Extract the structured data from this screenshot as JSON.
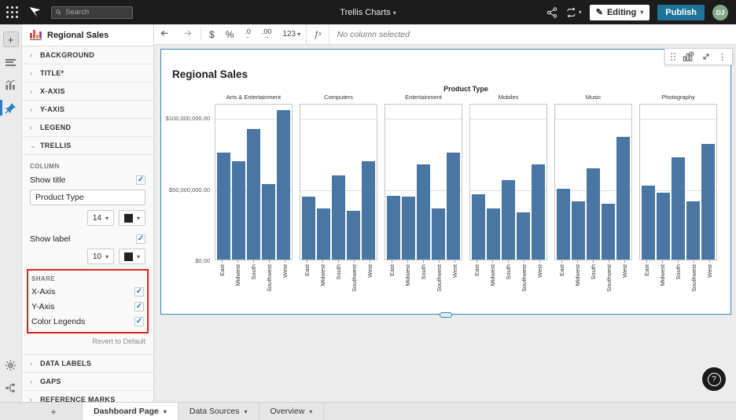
{
  "topbar": {
    "search_placeholder": "Search",
    "doc_title": "Trellis Charts",
    "editing_label": "Editing",
    "publish_label": "Publish",
    "avatar_initials": "DJ"
  },
  "toolbar": {
    "number_format_label": "123",
    "formula_placeholder": "No column selected"
  },
  "sidebar": {
    "element_title": "Regional Sales",
    "sections_before": [
      "BACKGROUND",
      "TITLE*",
      "X-AXIS",
      "Y-AXIS",
      "LEGEND"
    ],
    "trellis": {
      "label": "TRELLIS",
      "column_label": "COLUMN",
      "show_title_label": "Show title",
      "title_value": "Product Type",
      "title_size": "14",
      "show_label_label": "Show label",
      "label_size": "10",
      "share_label": "SHARE",
      "share_items": [
        {
          "label": "X-Axis",
          "checked": true
        },
        {
          "label": "Y-Axis",
          "checked": true
        },
        {
          "label": "Color Legends",
          "checked": true
        }
      ],
      "revert_label": "Revert to Default"
    },
    "sections_after": [
      "DATA LABELS",
      "GAPS",
      "REFERENCE MARKS"
    ]
  },
  "bottombar": {
    "tabs": [
      {
        "label": "Dashboard Page",
        "active": true
      },
      {
        "label": "Data Sources",
        "active": false
      },
      {
        "label": "Overview",
        "active": false
      }
    ]
  },
  "colors": {
    "bar": "#4a76a4",
    "accent_check": "#1e73bd",
    "publish_button": "#1f7398",
    "avatar": "#84a98b",
    "selection_border": "#3b86ad",
    "highlight_box": "#e02222"
  },
  "chart_data": {
    "type": "bar",
    "title": "Regional Sales",
    "trellis_header": "Product Type",
    "categories": [
      "East",
      "Midwest",
      "South",
      "Southwest",
      "West"
    ],
    "panels": [
      {
        "name": "Arts & Entertainment",
        "values": [
          75000000,
          69000000,
          92000000,
          53000000,
          105000000
        ]
      },
      {
        "name": "Computers",
        "values": [
          44000000,
          36000000,
          59000000,
          34000000,
          69000000
        ]
      },
      {
        "name": "Entertainment",
        "values": [
          45000000,
          44000000,
          67000000,
          36000000,
          75000000
        ]
      },
      {
        "name": "Mobiles",
        "values": [
          46000000,
          36000000,
          56000000,
          33000000,
          67000000
        ]
      },
      {
        "name": "Music",
        "values": [
          50000000,
          41000000,
          64000000,
          39000000,
          86000000
        ]
      },
      {
        "name": "Photography",
        "values": [
          52000000,
          47000000,
          72000000,
          41000000,
          81000000
        ]
      }
    ],
    "y_ticks": [
      {
        "label": "$100,000,000.00",
        "value": 100000000
      },
      {
        "label": "$50,000,000.00",
        "value": 50000000
      },
      {
        "label": "$0.00",
        "value": 0
      }
    ],
    "y_max": 110000000,
    "grid": true,
    "legend": false,
    "x_label_rotation": 90
  }
}
